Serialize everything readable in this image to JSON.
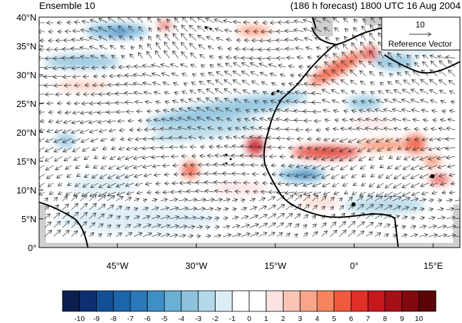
{
  "title_left": "Ensemble 10",
  "title_right": "(186 h forecast) 1800 UTC 16 Aug 2004",
  "reference_vector": {
    "magnitude": "10",
    "label": "Reference Vector"
  },
  "lat_labels": [
    "40°N",
    "35°N",
    "30°N",
    "25°N",
    "20°N",
    "15°N",
    "10°N",
    "5°N",
    "0°"
  ],
  "lon_labels": [
    "45°W",
    "30°W",
    "15°W",
    "0°",
    "15°E"
  ],
  "colorbar": {
    "labels": [
      "-10",
      "-9",
      "-8",
      "-7",
      "-6",
      "-5",
      "-4",
      "-3",
      "-2",
      "-1",
      "0",
      "1",
      "2",
      "3",
      "4",
      "5",
      "6",
      "7",
      "8",
      "9",
      "10"
    ],
    "colors": [
      "#0b1f4f",
      "#0d2f72",
      "#134f96",
      "#1d65ab",
      "#2c77b8",
      "#3f8fc5",
      "#6aafd4",
      "#8fc3dd",
      "#b3d8e8",
      "#dcedf6",
      "#ffffff",
      "#ffffff",
      "#fde2e2",
      "#fbc4b4",
      "#f9a58a",
      "#f7845f",
      "#f15a3d",
      "#e03027",
      "#c8171c",
      "#a50f15",
      "#7e0a0f",
      "#5a0508"
    ]
  },
  "colors": {
    "land_outline": "#000000",
    "missing": "#cfcfcf",
    "vector": "#333333"
  }
}
